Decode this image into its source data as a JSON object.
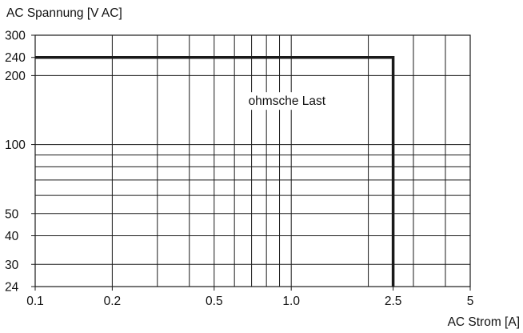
{
  "chart_data": {
    "type": "line",
    "ylabel": "AC Spannung  [V AC]",
    "xlabel": "AC Strom [A]",
    "x_scale": "log",
    "y_scale": "log",
    "xlim": [
      0.1,
      5
    ],
    "ylim": [
      24,
      300
    ],
    "x_ticks": [
      {
        "value": 0.1,
        "label": "0.1"
      },
      {
        "value": 0.2,
        "label": "0.2"
      },
      {
        "value": 0.5,
        "label": "0.5"
      },
      {
        "value": 1.0,
        "label": "1.0"
      },
      {
        "value": 2.5,
        "label": "2.5"
      },
      {
        "value": 5,
        "label": "5"
      }
    ],
    "y_ticks": [
      {
        "value": 24,
        "label": "24"
      },
      {
        "value": 30,
        "label": "30"
      },
      {
        "value": 40,
        "label": "40"
      },
      {
        "value": 50,
        "label": "50"
      },
      {
        "value": 100,
        "label": "100"
      },
      {
        "value": 200,
        "label": "200"
      },
      {
        "value": 240,
        "label": "240"
      },
      {
        "value": 300,
        "label": "300"
      }
    ],
    "x_gridlines": [
      0.2,
      0.3,
      0.4,
      0.5,
      0.6,
      0.7,
      0.8,
      0.9,
      1.0,
      2.0,
      3.0,
      4.0
    ],
    "y_gridlines": [
      30,
      40,
      50,
      60,
      70,
      80,
      90,
      100,
      200
    ],
    "grid": true,
    "series": [
      {
        "x": [
          0.1,
          2.5,
          2.5
        ],
        "y": [
          240,
          240,
          24
        ],
        "color": "#1a1a1a"
      }
    ],
    "annotations": [
      {
        "text": "ohmsche Last",
        "x": 0.68,
        "y": 150
      }
    ]
  }
}
